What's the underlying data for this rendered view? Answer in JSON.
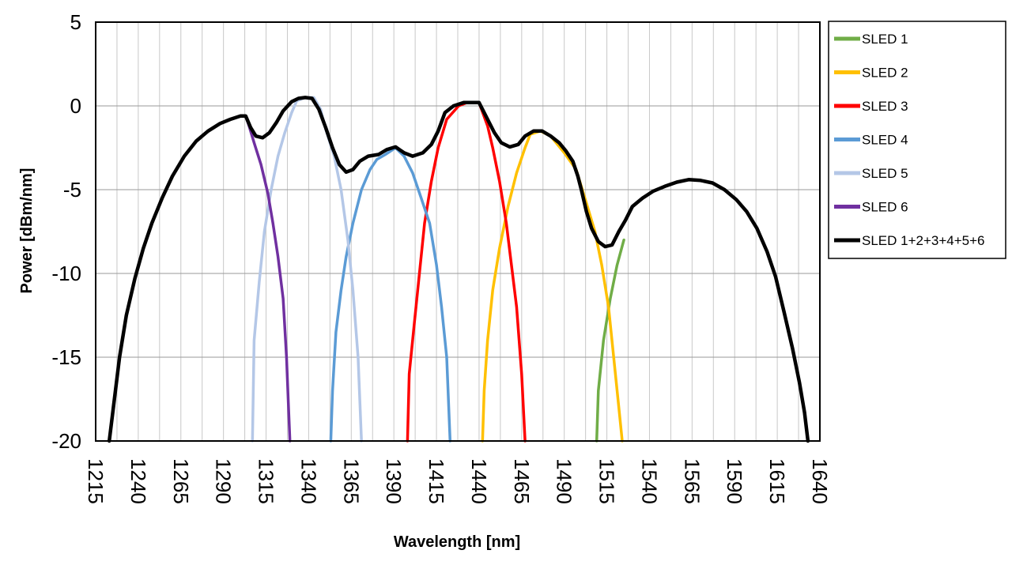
{
  "chart_data": {
    "type": "line",
    "title": "",
    "xlabel": "Wavelength [nm]",
    "ylabel": "Power [dBm/nm]",
    "xlim": [
      1215,
      1640
    ],
    "ylim": [
      -20,
      5
    ],
    "x_ticks": [
      1215,
      1240,
      1265,
      1290,
      1315,
      1340,
      1365,
      1390,
      1415,
      1440,
      1465,
      1490,
      1515,
      1540,
      1565,
      1590,
      1615,
      1640
    ],
    "y_ticks": [
      5,
      0,
      -5,
      -10,
      -15,
      -20
    ],
    "x_tick_labels": [
      "1215",
      "1240",
      "1265",
      "1290",
      "1315",
      "1340",
      "1365",
      "1390",
      "1415",
      "1440",
      "1465",
      "1490",
      "1515",
      "1540",
      "1565",
      "1590",
      "1615",
      "1640"
    ],
    "y_tick_labels": [
      "5",
      "0",
      "-5",
      "-10",
      "-15",
      "-20"
    ],
    "grid": true,
    "legend_position": "right",
    "series": [
      {
        "name": "SLED 1",
        "color": "#70ad47",
        "points": [
          [
            1509,
            -20
          ],
          [
            1510,
            -17
          ],
          [
            1513,
            -14
          ],
          [
            1517,
            -11.5
          ],
          [
            1521,
            -9.5
          ],
          [
            1525,
            -8
          ]
        ]
      },
      {
        "name": "SLED 2",
        "color": "#ffc000",
        "points": [
          [
            1442,
            -20
          ],
          [
            1443,
            -17
          ],
          [
            1445,
            -14
          ],
          [
            1448,
            -11
          ],
          [
            1452,
            -8.5
          ],
          [
            1457,
            -6
          ],
          [
            1462,
            -4
          ],
          [
            1467,
            -2.5
          ],
          [
            1470,
            -1.7
          ],
          [
            1476,
            -1.5
          ],
          [
            1482,
            -1.8
          ],
          [
            1490,
            -2.8
          ],
          [
            1497,
            -3.8
          ],
          [
            1503,
            -5.8
          ],
          [
            1508,
            -7.5
          ],
          [
            1512,
            -9.5
          ],
          [
            1516,
            -12
          ],
          [
            1519,
            -15
          ],
          [
            1522,
            -18
          ],
          [
            1524,
            -20
          ]
        ]
      },
      {
        "name": "SLED 3",
        "color": "#ff0000",
        "points": [
          [
            1398,
            -20
          ],
          [
            1399,
            -16
          ],
          [
            1402,
            -13
          ],
          [
            1405,
            -10
          ],
          [
            1408,
            -7
          ],
          [
            1412,
            -4.5
          ],
          [
            1416,
            -2.5
          ],
          [
            1421,
            -0.8
          ],
          [
            1428,
            0
          ],
          [
            1433,
            0.2
          ],
          [
            1440,
            0.2
          ],
          [
            1445,
            -1.2
          ],
          [
            1448,
            -2.5
          ],
          [
            1452,
            -4.5
          ],
          [
            1456,
            -7
          ],
          [
            1459,
            -9.5
          ],
          [
            1462,
            -12
          ],
          [
            1465,
            -16
          ],
          [
            1467,
            -20
          ]
        ]
      },
      {
        "name": "SLED 4",
        "color": "#5b9bd5",
        "points": [
          [
            1353,
            -20
          ],
          [
            1354,
            -17
          ],
          [
            1356,
            -13.5
          ],
          [
            1359,
            -11
          ],
          [
            1362,
            -9
          ],
          [
            1366,
            -7
          ],
          [
            1371,
            -5
          ],
          [
            1376,
            -3.8
          ],
          [
            1380,
            -3.2
          ],
          [
            1385,
            -2.9
          ],
          [
            1391,
            -2.5
          ],
          [
            1396,
            -3
          ],
          [
            1401,
            -4
          ],
          [
            1406,
            -5.5
          ],
          [
            1411,
            -7
          ],
          [
            1415,
            -9.5
          ],
          [
            1418,
            -12
          ],
          [
            1421,
            -15
          ],
          [
            1423,
            -20
          ]
        ]
      },
      {
        "name": "SLED 5",
        "color": "#b4c7e7",
        "points": [
          [
            1307,
            -20
          ],
          [
            1308,
            -14
          ],
          [
            1311,
            -10.5
          ],
          [
            1314,
            -7.5
          ],
          [
            1318,
            -5
          ],
          [
            1322,
            -3
          ],
          [
            1326,
            -1.6
          ],
          [
            1330,
            -0.4
          ],
          [
            1333,
            0.3
          ],
          [
            1338,
            0.5
          ],
          [
            1343,
            0.5
          ],
          [
            1347,
            -0.2
          ],
          [
            1350,
            -1.4
          ],
          [
            1355,
            -3
          ],
          [
            1359,
            -5
          ],
          [
            1363,
            -8
          ],
          [
            1366,
            -11
          ],
          [
            1369,
            -15
          ],
          [
            1371,
            -20
          ]
        ]
      },
      {
        "name": "SLED 6",
        "color": "#7030a0",
        "points": [
          [
            1303,
            -0.6
          ],
          [
            1305,
            -1.2
          ],
          [
            1308,
            -2.2
          ],
          [
            1312,
            -3.5
          ],
          [
            1316,
            -5.2
          ],
          [
            1319,
            -7
          ],
          [
            1322,
            -9
          ],
          [
            1325,
            -11.5
          ],
          [
            1327,
            -15
          ],
          [
            1328,
            -17.5
          ],
          [
            1329,
            -20
          ]
        ]
      },
      {
        "name": "SLED 1+2+3+4+5+6",
        "color": "#000000",
        "points": [
          [
            1223,
            -20
          ],
          [
            1226,
            -17.5
          ],
          [
            1229,
            -15
          ],
          [
            1233,
            -12.5
          ],
          [
            1238,
            -10.3
          ],
          [
            1243,
            -8.5
          ],
          [
            1248,
            -7
          ],
          [
            1254,
            -5.5
          ],
          [
            1260,
            -4.2
          ],
          [
            1267,
            -3
          ],
          [
            1274,
            -2.1
          ],
          [
            1281,
            -1.5
          ],
          [
            1288,
            -1.05
          ],
          [
            1294,
            -0.8
          ],
          [
            1300,
            -0.6
          ],
          [
            1303,
            -0.6
          ],
          [
            1306,
            -1.3
          ],
          [
            1309,
            -1.8
          ],
          [
            1313,
            -1.9
          ],
          [
            1317,
            -1.6
          ],
          [
            1321,
            -1
          ],
          [
            1325,
            -0.3
          ],
          [
            1330,
            0.25
          ],
          [
            1334,
            0.45
          ],
          [
            1338,
            0.5
          ],
          [
            1342,
            0.45
          ],
          [
            1346,
            -0.2
          ],
          [
            1350,
            -1.3
          ],
          [
            1354,
            -2.5
          ],
          [
            1358,
            -3.5
          ],
          [
            1362,
            -3.95
          ],
          [
            1366,
            -3.8
          ],
          [
            1370,
            -3.3
          ],
          [
            1375,
            -3
          ],
          [
            1381,
            -2.9
          ],
          [
            1386,
            -2.6
          ],
          [
            1391,
            -2.45
          ],
          [
            1396,
            -2.8
          ],
          [
            1401,
            -3
          ],
          [
            1407,
            -2.8
          ],
          [
            1412,
            -2.3
          ],
          [
            1416,
            -1.5
          ],
          [
            1420,
            -0.4
          ],
          [
            1425,
            0
          ],
          [
            1431,
            0.2
          ],
          [
            1436,
            0.2
          ],
          [
            1440,
            0.2
          ],
          [
            1445,
            -0.8
          ],
          [
            1449,
            -1.6
          ],
          [
            1453,
            -2.2
          ],
          [
            1458,
            -2.45
          ],
          [
            1463,
            -2.3
          ],
          [
            1467,
            -1.8
          ],
          [
            1472,
            -1.5
          ],
          [
            1477,
            -1.5
          ],
          [
            1482,
            -1.8
          ],
          [
            1487,
            -2.2
          ],
          [
            1491,
            -2.7
          ],
          [
            1495,
            -3.3
          ],
          [
            1498,
            -4.2
          ],
          [
            1500,
            -5
          ],
          [
            1503,
            -6.3
          ],
          [
            1506,
            -7.3
          ],
          [
            1510,
            -8.1
          ],
          [
            1514,
            -8.4
          ],
          [
            1518,
            -8.3
          ],
          [
            1522,
            -7.5
          ],
          [
            1526,
            -6.8
          ],
          [
            1530,
            -6
          ],
          [
            1536,
            -5.5
          ],
          [
            1542,
            -5.1
          ],
          [
            1549,
            -4.8
          ],
          [
            1556,
            -4.55
          ],
          [
            1563,
            -4.4
          ],
          [
            1570,
            -4.45
          ],
          [
            1577,
            -4.6
          ],
          [
            1584,
            -5
          ],
          [
            1591,
            -5.6
          ],
          [
            1597,
            -6.3
          ],
          [
            1603,
            -7.3
          ],
          [
            1609,
            -8.7
          ],
          [
            1614,
            -10.2
          ],
          [
            1619,
            -12.3
          ],
          [
            1624,
            -14.5
          ],
          [
            1628,
            -16.5
          ],
          [
            1631,
            -18.3
          ],
          [
            1633,
            -20
          ]
        ]
      }
    ]
  }
}
